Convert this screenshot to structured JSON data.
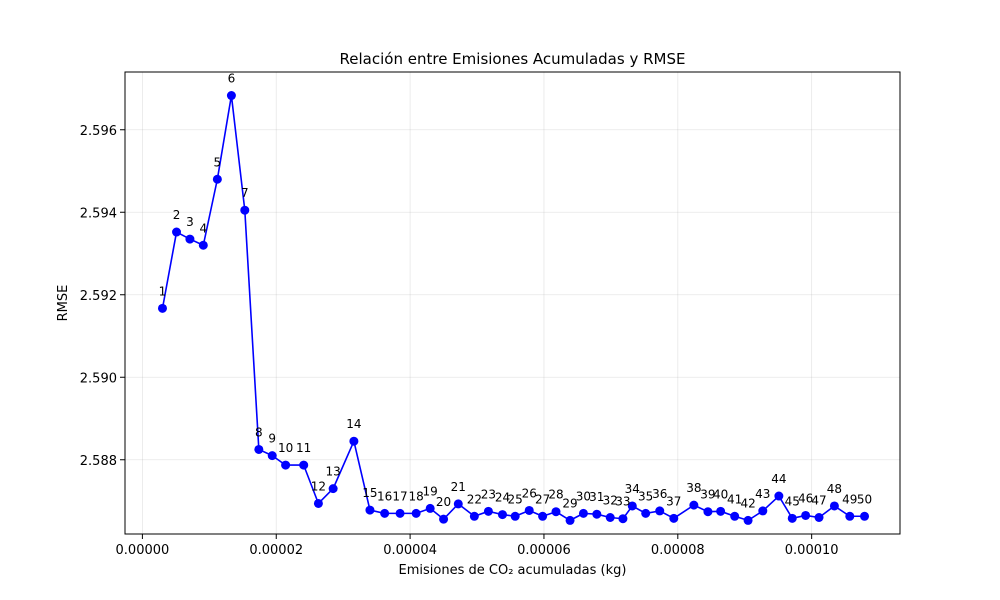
{
  "chart_data": {
    "type": "line",
    "title": "Relación entre Emisiones Acumuladas y RMSE",
    "xlabel": "Emisiones de CO₂ acumuladas (kg)",
    "ylabel": "RMSE",
    "xlim": [
      -2.6e-06,
      0.0001132
    ],
    "ylim": [
      2.5862,
      2.5974
    ],
    "xticks": [
      0.0,
      2e-05,
      4e-05,
      6e-05,
      8e-05,
      0.0001
    ],
    "xtick_labels": [
      "0.00000",
      "0.00002",
      "0.00004",
      "0.00006",
      "0.00008",
      "0.00010"
    ],
    "yticks": [
      2.588,
      2.59,
      2.592,
      2.594,
      2.596
    ],
    "ytick_labels": [
      "2.588",
      "2.590",
      "2.592",
      "2.594",
      "2.596"
    ],
    "grid": true,
    "color": "#0000ff",
    "marker": "circle",
    "series": [
      {
        "labels": [
          "1",
          "2",
          "3",
          "4",
          "5",
          "6",
          "7",
          "8",
          "9",
          "10",
          "11",
          "12",
          "13",
          "14",
          "15",
          "16",
          "17",
          "18",
          "19",
          "20",
          "21",
          "22",
          "23",
          "24",
          "25",
          "26",
          "27",
          "28",
          "29",
          "30",
          "31",
          "32",
          "33",
          "34",
          "35",
          "36",
          "37",
          "38",
          "39",
          "40",
          "41",
          "42",
          "43",
          "44",
          "45",
          "46",
          "47",
          "48",
          "49",
          "50"
        ],
        "x": [
          3e-06,
          5.1e-06,
          7.1e-06,
          9.1e-06,
          1.12e-05,
          1.33e-05,
          1.53e-05,
          1.74e-05,
          1.94e-05,
          2.14e-05,
          2.41e-05,
          2.63e-05,
          2.85e-05,
          3.16e-05,
          3.4e-05,
          3.62e-05,
          3.85e-05,
          4.09e-05,
          4.3e-05,
          4.5e-05,
          4.72e-05,
          4.96e-05,
          5.17e-05,
          5.38e-05,
          5.57e-05,
          5.78e-05,
          5.98e-05,
          6.18e-05,
          6.39e-05,
          6.59e-05,
          6.79e-05,
          6.99e-05,
          7.18e-05,
          7.32e-05,
          7.52e-05,
          7.73e-05,
          7.94e-05,
          8.24e-05,
          8.45e-05,
          8.64e-05,
          8.85e-05,
          9.05e-05,
          9.27e-05,
          9.51e-05,
          9.71e-05,
          9.91e-05,
          0.0001011,
          0.0001034,
          0.0001057,
          0.0001079
        ],
        "values": [
          2.59167,
          2.59352,
          2.59335,
          2.5932,
          2.5948,
          2.59683,
          2.59405,
          2.58825,
          2.5881,
          2.58787,
          2.58787,
          2.58694,
          2.5873,
          2.58845,
          2.58678,
          2.5867,
          2.5867,
          2.5867,
          2.58682,
          2.58656,
          2.58693,
          2.58663,
          2.58675,
          2.58667,
          2.58663,
          2.58677,
          2.58663,
          2.58674,
          2.58653,
          2.5867,
          2.58668,
          2.5866,
          2.58657,
          2.58688,
          2.5867,
          2.58676,
          2.58658,
          2.5869,
          2.58674,
          2.58675,
          2.58663,
          2.58653,
          2.58676,
          2.58712,
          2.58658,
          2.58665,
          2.5866,
          2.58688,
          2.58663,
          2.58663
        ]
      }
    ]
  }
}
